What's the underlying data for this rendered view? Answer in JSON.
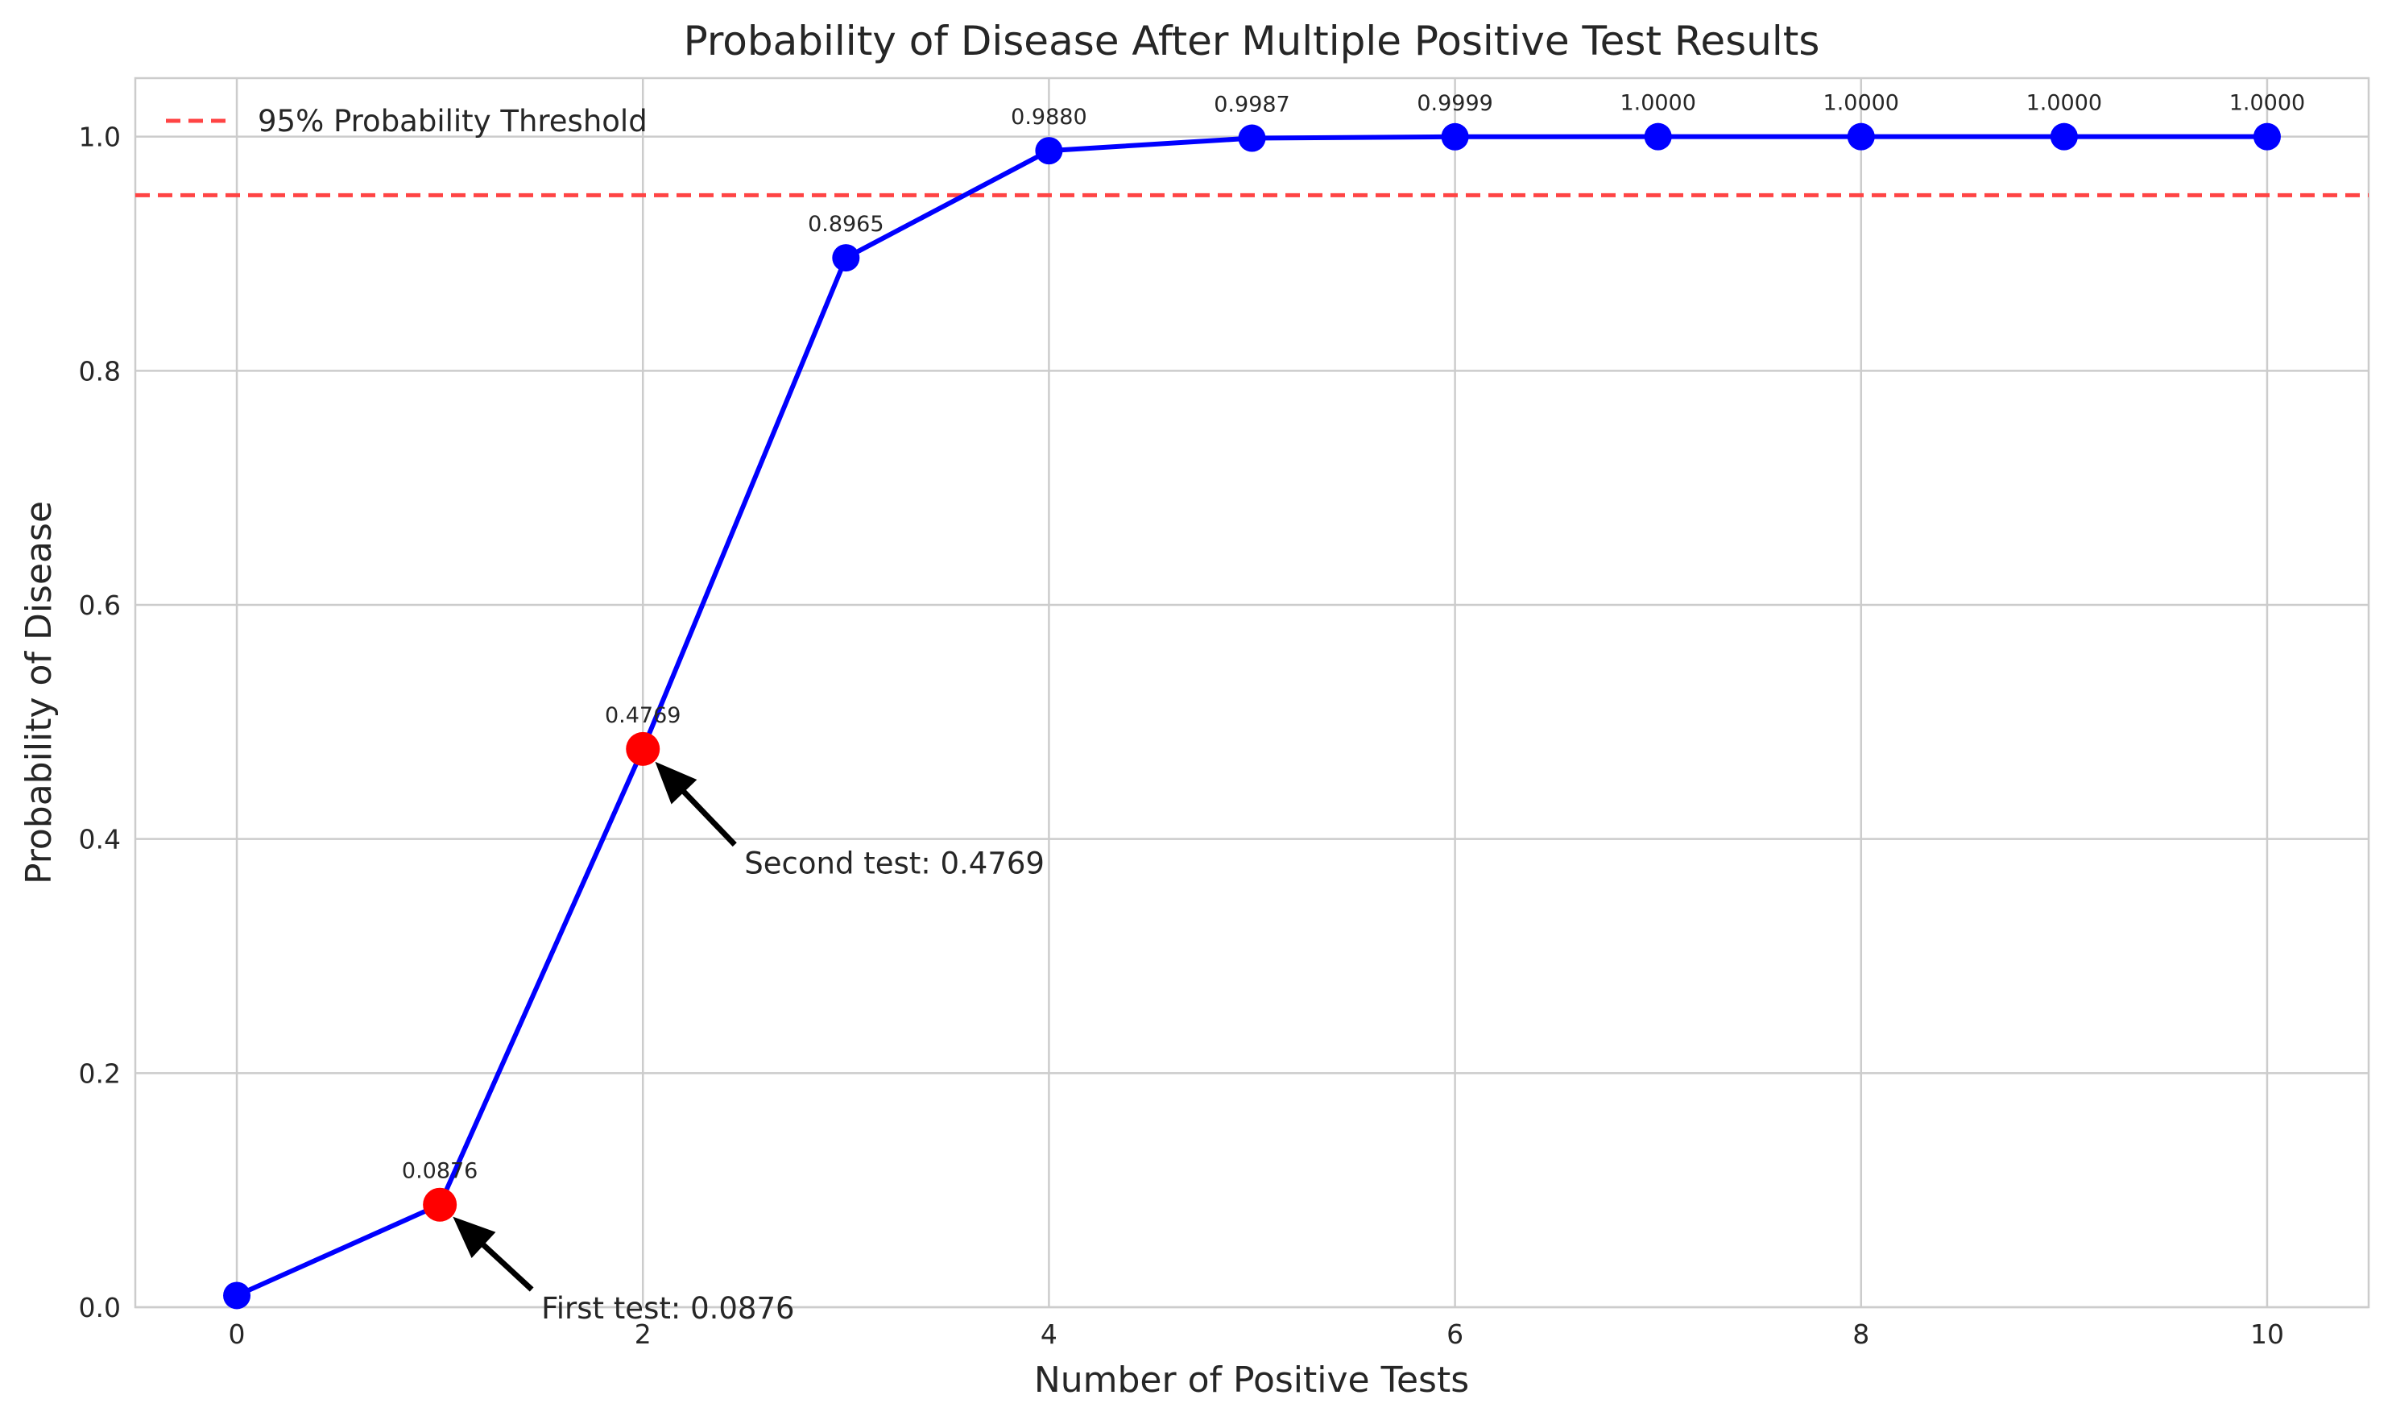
{
  "chart_data": {
    "type": "line",
    "title": "Probability of Disease After Multiple Positive Test Results",
    "xlabel": "Number of Positive Tests",
    "ylabel": "Probability of Disease",
    "xlim": [
      -0.5,
      10.5
    ],
    "ylim": [
      0,
      1.05
    ],
    "xticks": [
      0,
      2,
      4,
      6,
      8,
      10
    ],
    "yticks": [
      0.0,
      0.2,
      0.4,
      0.6,
      0.8,
      1.0
    ],
    "ytick_labels": [
      "0.0",
      "0.2",
      "0.4",
      "0.6",
      "0.8",
      "1.0"
    ],
    "grid": true,
    "legend_position": "top-left",
    "series": [
      {
        "color": "#0000ff",
        "x": [
          0,
          1,
          2,
          3,
          4,
          5,
          6,
          7,
          8,
          9,
          10
        ],
        "y": [
          0.01,
          0.0876,
          0.4769,
          0.8965,
          0.988,
          0.9987,
          0.9999,
          1.0,
          1.0,
          1.0,
          1.0
        ],
        "point_labels": [
          "",
          "0.0876",
          "0.4769",
          "0.8965",
          "0.9880",
          "0.9987",
          "0.9999",
          "1.0000",
          "1.0000",
          "1.0000",
          "1.0000"
        ],
        "highlight_color": "#ff0000",
        "highlighted_x": [
          1,
          2
        ]
      }
    ],
    "threshold": {
      "name": "95% Probability Threshold",
      "value": 0.95,
      "color": "#ff4444",
      "style": "dashed"
    },
    "annotations": [
      {
        "text": "First test: 0.0876",
        "point_x": 1,
        "point_y": 0.0876,
        "text_x": 1.5,
        "text_y": 0.0
      },
      {
        "text": "Second test: 0.4769",
        "point_x": 2,
        "point_y": 0.4769,
        "text_x": 2.5,
        "text_y": 0.38
      }
    ]
  }
}
